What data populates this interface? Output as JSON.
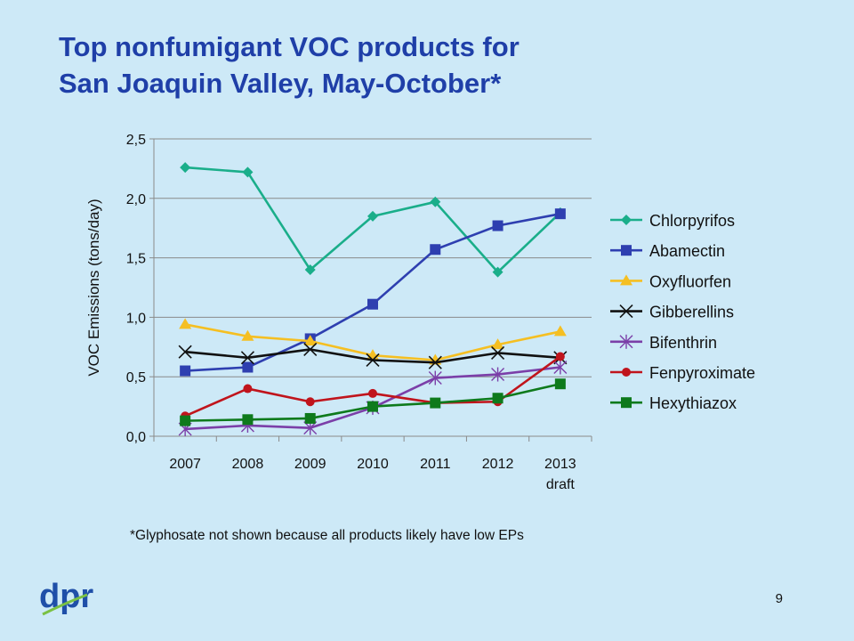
{
  "slide": {
    "title_line1": "Top nonfumigant VOC products for",
    "title_line2": "San Joaquin Valley, May-October*",
    "footnote": "*Glyphosate not shown because all products likely have low EPs",
    "page_number": "9",
    "logo_text": "dpr"
  },
  "colors": {
    "background": "#cde9f7",
    "title": "#1f3fa8",
    "logo": "#1f4fa8",
    "logo_accent": "#7ac143"
  },
  "chart_data": {
    "type": "line",
    "ylabel": "VOC Emissions (tons/day)",
    "xlabel": "",
    "ylim": [
      0,
      2.5
    ],
    "ytick_step": 0.5,
    "ytick_labels": [
      "0,0",
      "0,5",
      "1,0",
      "1,5",
      "2,0",
      "2,5"
    ],
    "categories": [
      "2007",
      "2008",
      "2009",
      "2010",
      "2011",
      "2012",
      "2013\ndraft"
    ],
    "grid": true,
    "legend_position": "right",
    "series": [
      {
        "name": "Chlorpyrifos",
        "color": "#1aae8a",
        "marker": "diamond",
        "values": [
          2.26,
          2.22,
          1.4,
          1.85,
          1.97,
          1.38,
          1.88
        ]
      },
      {
        "name": "Abamectin",
        "color": "#2e3fb0",
        "marker": "square",
        "values": [
          0.55,
          0.58,
          0.82,
          1.11,
          1.57,
          1.77,
          1.87
        ]
      },
      {
        "name": "Oxyfluorfen",
        "color": "#f5bf22",
        "marker": "triangle",
        "values": [
          0.94,
          0.84,
          0.8,
          0.68,
          0.64,
          0.77,
          0.88
        ]
      },
      {
        "name": "Gibberellins",
        "color": "#111111",
        "marker": "x",
        "values": [
          0.71,
          0.66,
          0.73,
          0.64,
          0.62,
          0.7,
          0.66
        ]
      },
      {
        "name": "Bifenthrin",
        "color": "#7b3fa8",
        "marker": "star",
        "values": [
          0.06,
          0.09,
          0.07,
          0.24,
          0.49,
          0.52,
          0.58
        ]
      },
      {
        "name": "Fenpyroximate",
        "color": "#c0141c",
        "marker": "circle",
        "values": [
          0.17,
          0.4,
          0.29,
          0.36,
          0.28,
          0.29,
          0.67
        ]
      },
      {
        "name": "Hexythiazox",
        "color": "#0e7a1c",
        "marker": "square",
        "values": [
          0.13,
          0.14,
          0.15,
          0.25,
          0.28,
          0.32,
          0.44
        ]
      }
    ]
  }
}
